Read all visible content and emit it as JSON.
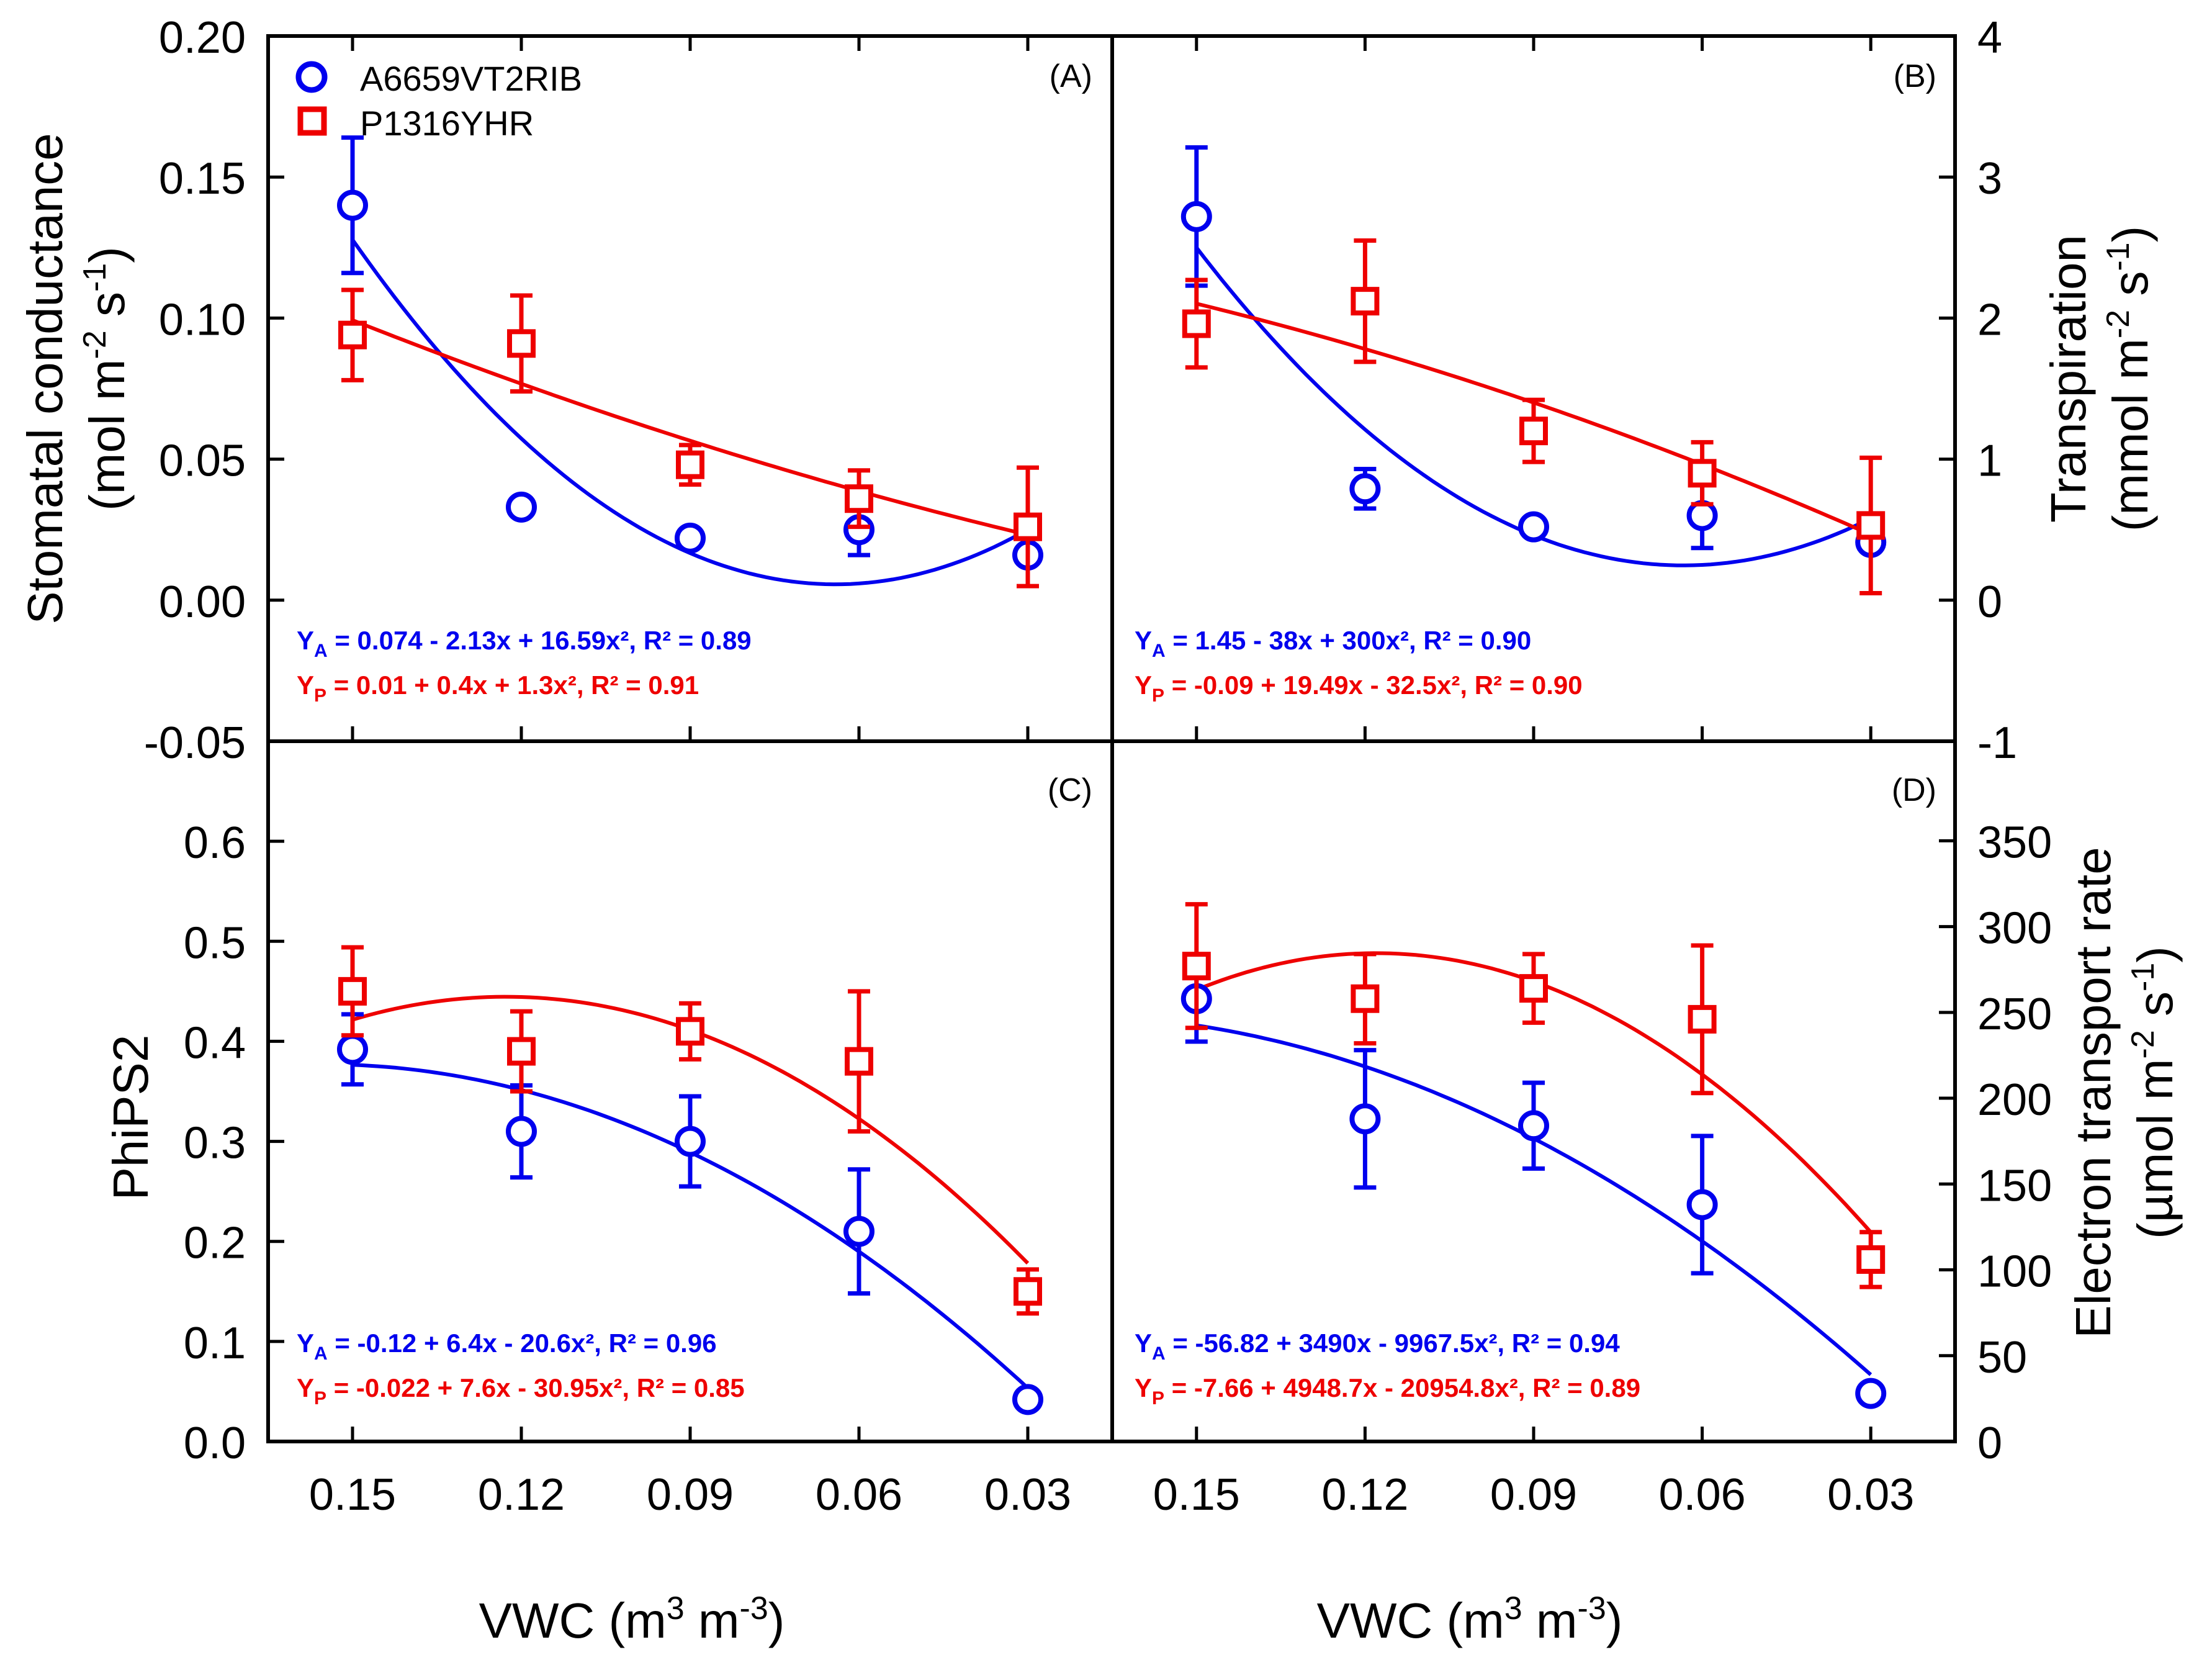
{
  "chart_data": [
    {
      "panel": "(A)",
      "type": "scatter",
      "ylabel": "Stomatal conductance",
      "ylabel_unit": "(mol m⁻² s⁻¹)",
      "xlim": [
        0.165,
        0.015
      ],
      "ylim": [
        -0.05,
        0.2
      ],
      "yticks": [
        -0.05,
        0.0,
        0.05,
        0.1,
        0.15,
        0.2
      ],
      "ytick_labels": [
        "-0.05",
        "0.00",
        "0.05",
        "0.10",
        "0.15",
        "0.20"
      ],
      "x": [
        0.15,
        0.12,
        0.09,
        0.06,
        0.03
      ],
      "series": [
        {
          "name": "A6659VT2RIB",
          "marker": "circle",
          "color": "#0000ee",
          "values": [
            0.14,
            0.033,
            0.022,
            0.025,
            0.016
          ],
          "errors": [
            0.024,
            0.0,
            0.0,
            0.009,
            0.0
          ],
          "fit": [
            0.074,
            -2.13,
            16.59
          ],
          "equation_sub": "A",
          "equation": " = 0.074 - 2.13x + 16.59x², R² = 0.89"
        },
        {
          "name": "P1316YHR",
          "marker": "square",
          "color": "#ee0000",
          "values": [
            0.094,
            0.091,
            0.048,
            0.036,
            0.026
          ],
          "errors": [
            0.016,
            0.017,
            0.007,
            0.01,
            0.021
          ],
          "fit": [
            0.01,
            0.4,
            1.3
          ],
          "equation_sub": "P",
          "equation": " = 0.01 + 0.4x + 1.3x², R² = 0.91"
        }
      ]
    },
    {
      "panel": "(B)",
      "type": "scatter",
      "ylabel": "Transpiration",
      "ylabel_unit": "(mmol m⁻² s⁻¹)",
      "xlim": [
        0.165,
        0.015
      ],
      "ylim": [
        -1,
        4
      ],
      "yticks": [
        -1,
        0,
        1,
        2,
        3,
        4
      ],
      "ytick_labels": [
        "-1",
        "0",
        "1",
        "2",
        "3",
        "4"
      ],
      "x": [
        0.15,
        0.12,
        0.09,
        0.06,
        0.03
      ],
      "series": [
        {
          "name": "A6659VT2RIB",
          "marker": "circle",
          "color": "#0000ee",
          "values": [
            2.72,
            0.79,
            0.52,
            0.6,
            0.41
          ],
          "errors": [
            0.49,
            0.14,
            0.0,
            0.23,
            0.0
          ],
          "fit": [
            1.45,
            -38,
            300
          ],
          "equation_sub": "A",
          "equation": " = 1.45 - 38x + 300x², R² = 0.90"
        },
        {
          "name": "P1316YHR",
          "marker": "square",
          "color": "#ee0000",
          "values": [
            1.96,
            2.12,
            1.2,
            0.9,
            0.53
          ],
          "errors": [
            0.31,
            0.43,
            0.22,
            0.22,
            0.48
          ],
          "fit": [
            -0.09,
            19.49,
            -32.5
          ],
          "equation_sub": "P",
          "equation": " = -0.09 + 19.49x - 32.5x², R² = 0.90"
        }
      ]
    },
    {
      "panel": "(C)",
      "type": "scatter",
      "ylabel": "PhiPS2",
      "ylabel_unit": "",
      "xlim": [
        0.165,
        0.015
      ],
      "ylim": [
        0,
        0.7
      ],
      "yticks": [
        0,
        0.1,
        0.2,
        0.3,
        0.4,
        0.5,
        0.6
      ],
      "ytick_labels": [
        "0.0",
        "0.1",
        "0.2",
        "0.3",
        "0.4",
        "0.5",
        "0.6"
      ],
      "x": [
        0.15,
        0.12,
        0.09,
        0.06,
        0.03
      ],
      "xtick_labels": [
        "0.15",
        "0.12",
        "0.09",
        "0.06",
        "0.03"
      ],
      "series": [
        {
          "name": "A6659VT2RIB",
          "marker": "circle",
          "color": "#0000ee",
          "values": [
            0.392,
            0.31,
            0.3,
            0.21,
            0.042
          ],
          "errors": [
            0.035,
            0.046,
            0.045,
            0.062,
            0.0
          ],
          "fit": [
            -0.12,
            6.4,
            -20.6
          ],
          "equation_sub": "A",
          "equation": " = -0.12 + 6.4x - 20.6x², R² = 0.96"
        },
        {
          "name": "P1316YHR",
          "marker": "square",
          "color": "#ee0000",
          "values": [
            0.45,
            0.39,
            0.41,
            0.38,
            0.15
          ],
          "errors": [
            0.044,
            0.04,
            0.028,
            0.07,
            0.022
          ],
          "fit": [
            -0.022,
            7.6,
            -30.95
          ],
          "equation_sub": "P",
          "equation": " = -0.022 + 7.6x - 30.95x², R² = 0.85"
        }
      ]
    },
    {
      "panel": "(D)",
      "type": "scatter",
      "ylabel": "Electron transport rate",
      "ylabel_unit": "(µmol m⁻² s⁻¹)",
      "xlim": [
        0.165,
        0.015
      ],
      "ylim": [
        0,
        408
      ],
      "yticks": [
        0,
        50,
        100,
        150,
        200,
        250,
        300,
        350
      ],
      "ytick_labels": [
        "0",
        "50",
        "100",
        "150",
        "200",
        "250",
        "300",
        "350"
      ],
      "x": [
        0.15,
        0.12,
        0.09,
        0.06,
        0.03
      ],
      "xtick_labels": [
        "0.15",
        "0.12",
        "0.09",
        "0.06",
        "0.03"
      ],
      "series": [
        {
          "name": "A6659VT2RIB",
          "marker": "circle",
          "color": "#0000ee",
          "values": [
            258,
            188,
            184,
            138,
            28
          ],
          "errors": [
            25,
            40,
            25,
            40,
            0
          ],
          "fit": [
            -56.82,
            3490,
            -9967.5
          ],
          "equation_sub": "A",
          "equation": " = -56.82 + 3490x - 9967.5x², R² = 0.94"
        },
        {
          "name": "P1316YHR",
          "marker": "square",
          "color": "#ee0000",
          "values": [
            277,
            258,
            264,
            246,
            106
          ],
          "errors": [
            36,
            26,
            20,
            43,
            16
          ],
          "fit": [
            -7.66,
            4948.7,
            -20954.8
          ],
          "equation_sub": "P",
          "equation": " = -7.66 + 4948.7x - 20954.8x², R² = 0.89"
        }
      ]
    }
  ],
  "xlabel_prefix": "VWC (m",
  "xlabel_mid": " m",
  "xlabel_suffix": ")",
  "xlabel_sup": "3",
  "xlabel_sup2": "-3",
  "unit_sup_neg2": "-2",
  "unit_sup_neg1": "-1",
  "unit_mol": "(mol m",
  "unit_mmol": "(mmol m",
  "unit_umol": "(µmol m",
  "unit_s": " s",
  "unit_close": ")",
  "legend": {
    "items": [
      {
        "label": "A6659VT2RIB",
        "marker": "circle",
        "color": "#0000ee"
      },
      {
        "label": "P1316YHR",
        "marker": "square",
        "color": "#ee0000"
      }
    ]
  },
  "colors": {
    "blue": "#0000ee",
    "red": "#ee0000",
    "axis": "#000000"
  }
}
